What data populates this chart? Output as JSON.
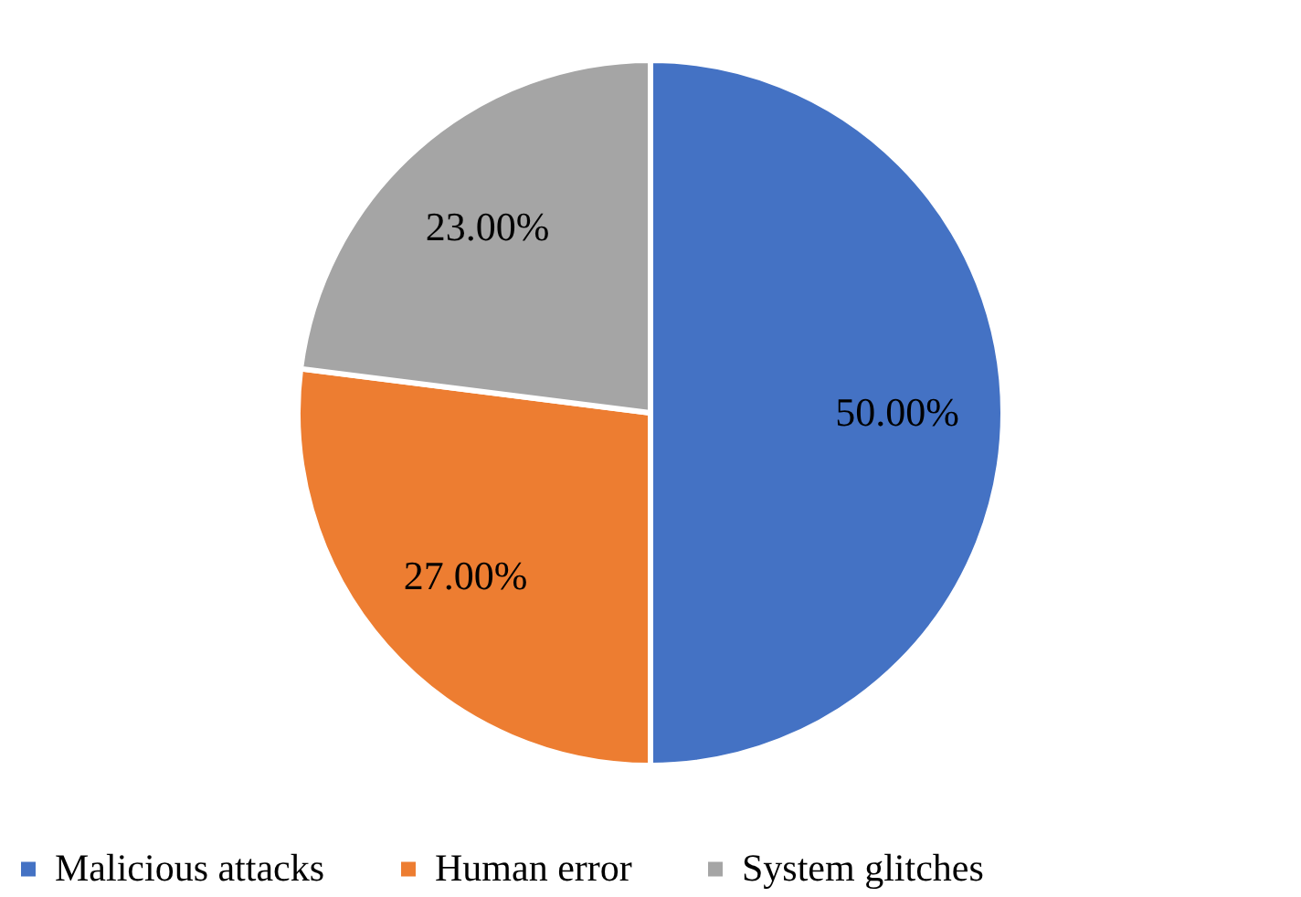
{
  "chart_data": {
    "type": "pie",
    "categories": [
      "Malicious attacks",
      "Human error",
      "System glitches"
    ],
    "values": [
      50,
      27,
      23
    ],
    "colors": [
      "#4472c4",
      "#ed7d31",
      "#a5a5a5"
    ],
    "value_labels": [
      "50.00%",
      "27.00%",
      "23.00%"
    ],
    "legend": "bottom"
  }
}
